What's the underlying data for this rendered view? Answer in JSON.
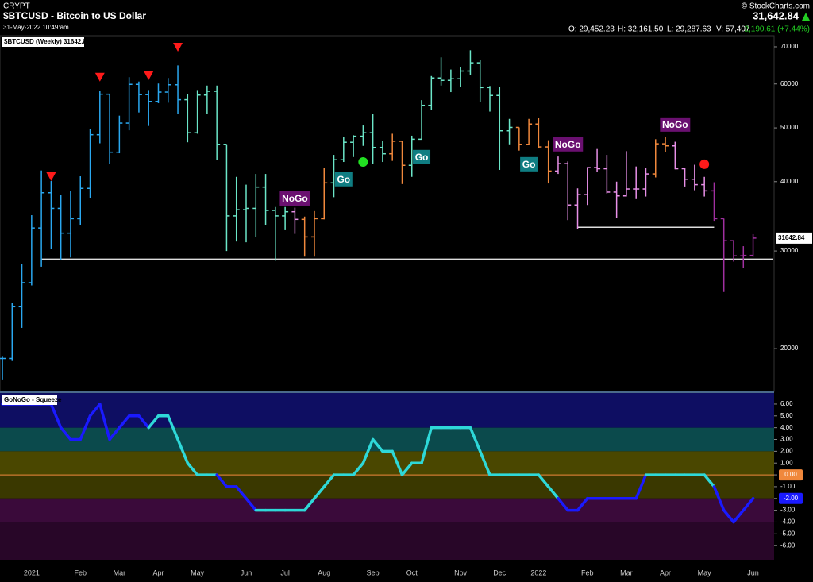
{
  "header": {
    "exchange": "CRYPT",
    "title": "$BTCUSD - Bitcoin to US Dollar",
    "timestamp": "31-May-2022 10:49:am",
    "copyright": "© StockCharts.com",
    "last": "31,642.84",
    "open": "O: 29,452.23",
    "high": "H: 32,161.50",
    "low": "L: 29,287.63",
    "volume": "V: 57,407",
    "change": "2,190.61 (+7.44%)"
  },
  "chart_data": [
    {
      "type": "ohlc",
      "title": "$BTCUSD (Weekly) 31642.84",
      "log_scale": true,
      "categories": [
        null,
        null,
        null,
        "2021",
        null,
        null,
        null,
        null,
        "Feb",
        null,
        null,
        null,
        "Mar",
        null,
        null,
        null,
        "Apr",
        null,
        null,
        null,
        "May",
        null,
        null,
        null,
        null,
        "Jun",
        null,
        null,
        null,
        "Jul",
        null,
        null,
        null,
        "Aug",
        null,
        null,
        null,
        null,
        "Sep",
        null,
        null,
        null,
        "Oct",
        null,
        null,
        null,
        null,
        "Nov",
        null,
        null,
        null,
        "Dec",
        null,
        null,
        null,
        "2022",
        null,
        null,
        null,
        null,
        "Feb",
        null,
        null,
        null,
        "Mar",
        null,
        null,
        null,
        "Apr",
        null,
        null,
        null,
        "May",
        null,
        null,
        null,
        null,
        "Jun"
      ],
      "open": [
        19200,
        19200,
        23800,
        26300,
        33000,
        38200,
        35800,
        32300,
        34300,
        38900,
        48600,
        57500,
        45200,
        51000,
        59900,
        57400,
        55800,
        58000,
        59800,
        56200,
        49000,
        57300,
        58200,
        46700,
        34700,
        35600,
        35800,
        39100,
        35500,
        34700,
        35300,
        34200,
        31800,
        34300,
        39800,
        43800,
        47100,
        48300,
        49000,
        46100,
        44900,
        47300,
        42800,
        47700,
        54900,
        61500,
        60900,
        61300,
        63300,
        65500,
        59100,
        57200,
        49400,
        50100,
        46700,
        50800,
        46200,
        41800,
        43100,
        36300,
        37900,
        42400,
        42200,
        38300,
        37700,
        38800,
        38800,
        41300,
        46800,
        46400,
        42200,
        40400,
        39500,
        38500,
        34300,
        31300,
        29400,
        29452.23
      ],
      "high": [
        19400,
        24200,
        28400,
        34800,
        41900,
        40100,
        37800,
        38500,
        40900,
        49700,
        58300,
        57500,
        52600,
        61700,
        60600,
        58500,
        60100,
        61500,
        64800,
        57500,
        58500,
        59600,
        59600,
        46700,
        40800,
        39500,
        41300,
        41300,
        36000,
        36000,
        35900,
        34600,
        35400,
        42300,
        44700,
        48100,
        48500,
        50500,
        52900,
        47400,
        48800,
        47400,
        48400,
        56100,
        62000,
        67000,
        63700,
        64300,
        69000,
        66300,
        59500,
        59200,
        51900,
        50100,
        51900,
        52100,
        47500,
        44400,
        43500,
        38900,
        42500,
        45800,
        44700,
        40000,
        45400,
        42600,
        42400,
        47700,
        48200,
        47200,
        42400,
        42900,
        40800,
        39900,
        34300,
        31300,
        30600,
        32161.5
      ],
      "low": [
        17600,
        19000,
        21800,
        26000,
        28100,
        30300,
        28900,
        29200,
        33400,
        37400,
        46900,
        43000,
        45000,
        49500,
        53300,
        50400,
        55400,
        55500,
        53000,
        47100,
        48800,
        53000,
        43800,
        30000,
        31200,
        31100,
        31800,
        33400,
        28800,
        32700,
        32200,
        29300,
        29300,
        34200,
        37500,
        43400,
        44300,
        46400,
        43100,
        43400,
        43600,
        39600,
        40800,
        47600,
        53900,
        59600,
        58000,
        59300,
        62300,
        55600,
        53500,
        42000,
        46700,
        45500,
        46600,
        45900,
        39700,
        41300,
        34100,
        32900,
        36300,
        41700,
        38100,
        34400,
        37600,
        37200,
        37600,
        40700,
        45200,
        42100,
        39200,
        38600,
        37600,
        34000,
        25300,
        28700,
        28000,
        29287.63
      ],
      "close": [
        19200,
        23800,
        26300,
        33000,
        38200,
        35800,
        32300,
        34300,
        38900,
        48600,
        57500,
        45200,
        51000,
        59900,
        57400,
        55800,
        58000,
        59800,
        56200,
        49000,
        57300,
        58200,
        46700,
        34700,
        35600,
        35800,
        39100,
        35500,
        34700,
        35300,
        34200,
        31800,
        34300,
        39800,
        43800,
        47100,
        48300,
        49000,
        46100,
        44900,
        47300,
        42800,
        47700,
        54900,
        61500,
        60900,
        61300,
        63300,
        65500,
        59100,
        57200,
        49400,
        50100,
        46700,
        50800,
        46200,
        41800,
        43100,
        36300,
        37900,
        42400,
        42200,
        38300,
        37700,
        38800,
        38800,
        41300,
        46800,
        46400,
        42200,
        40400,
        39500,
        38500,
        34300,
        31300,
        29400,
        29452.23,
        31642.84
      ],
      "colors": [
        "#2aa8f0",
        "#2aa8f0",
        "#2aa8f0",
        "#2aa8f0",
        "#2aa8f0",
        "#2aa8f0",
        "#2aa8f0",
        "#2aa8f0",
        "#2aa8f0",
        "#2aa8f0",
        "#2aa8f0",
        "#2aa8f0",
        "#2aa8f0",
        "#2aa8f0",
        "#2aa8f0",
        "#2aa8f0",
        "#2aa8f0",
        "#2aa8f0",
        "#2aa8f0",
        "#6be6c8",
        "#6be6c8",
        "#6be6c8",
        "#6be6c8",
        "#6be6c8",
        "#6be6c8",
        "#6be6c8",
        "#6be6c8",
        "#6be6c8",
        "#6be6c8",
        "#6be6c8",
        "#e890e8",
        "#f0883c",
        "#f0883c",
        "#f0883c",
        "#6be6c8",
        "#6be6c8",
        "#6be6c8",
        "#6be6c8",
        "#6be6c8",
        "#6be6c8",
        "#f0883c",
        "#f0883c",
        "#6be6c8",
        "#6be6c8",
        "#6be6c8",
        "#6be6c8",
        "#6be6c8",
        "#6be6c8",
        "#6be6c8",
        "#6be6c8",
        "#6be6c8",
        "#6be6c8",
        "#6be6c8",
        "#f0883c",
        "#f0883c",
        "#f0883c",
        "#f0883c",
        "#e890e8",
        "#e890e8",
        "#e890e8",
        "#e890e8",
        "#e890e8",
        "#e890e8",
        "#e890e8",
        "#e890e8",
        "#e890e8",
        "#e890e8",
        "#f0883c",
        "#f0883c",
        "#e890e8",
        "#e890e8",
        "#e890e8",
        "#e890e8",
        "#a030a0",
        "#a030a0",
        "#a030a0",
        "#a030a0",
        "#a030a0"
      ],
      "ylim": [
        16800,
        73300
      ],
      "yticks": [
        20000,
        30000,
        40000,
        50000,
        60000,
        70000
      ],
      "last_label": 31642.84,
      "last_color": "#ffffff",
      "annotations": [
        {
          "text": "NoGo",
          "bar": 30,
          "value": 37300,
          "color": "#6a1070"
        },
        {
          "text": "Go",
          "bar": 35,
          "value": 40400,
          "color": "#0f7d82"
        },
        {
          "text": "Go",
          "bar": 43,
          "value": 44300,
          "color": "#0f7d82"
        },
        {
          "text": "Go",
          "bar": 54,
          "value": 43000,
          "color": "#0f7d82"
        },
        {
          "text": "NoGo",
          "bar": 58,
          "value": 46700,
          "color": "#6a1070"
        },
        {
          "text": "NoGo",
          "bar": 69,
          "value": 50700,
          "color": "#6a1070"
        }
      ],
      "markers": [
        {
          "shape": "triangle",
          "bar": 5,
          "value": 40900,
          "color": "#ff1a1a"
        },
        {
          "shape": "triangle",
          "bar": 10,
          "value": 61800,
          "color": "#ff1a1a"
        },
        {
          "shape": "triangle",
          "bar": 15,
          "value": 62200,
          "color": "#ff1a1a"
        },
        {
          "shape": "triangle",
          "bar": 18,
          "value": 70000,
          "color": "#ff1a1a"
        },
        {
          "shape": "circle",
          "bar": 37,
          "value": 43400,
          "color": "#22e022"
        },
        {
          "shape": "circle",
          "bar": 72,
          "value": 43000,
          "color": "#ff1a1a"
        }
      ],
      "lines": [
        {
          "value": 29000,
          "from": 4,
          "to": 79
        },
        {
          "value": 33100,
          "from": 59,
          "to": 73
        }
      ]
    },
    {
      "type": "oscillator",
      "title": "GoNoGo - Squeeze",
      "values": [
        6,
        6,
        6,
        6,
        6,
        6,
        4,
        3,
        3,
        5,
        6,
        3,
        4,
        5,
        5,
        4,
        5,
        5,
        3,
        1,
        0,
        0,
        0,
        -1,
        -1,
        -2,
        -3,
        -3,
        -3,
        -3,
        -3,
        -3,
        -2,
        -1,
        0,
        0,
        0,
        1,
        3,
        2,
        2,
        0,
        1,
        1,
        4,
        4,
        4,
        4,
        4,
        2,
        0,
        0,
        0,
        0,
        0,
        0,
        -1,
        -2,
        -3,
        -3,
        -2,
        -2,
        -2,
        -2,
        -2,
        -2,
        0,
        0,
        0,
        0,
        0,
        0,
        0,
        -1,
        -3,
        -4,
        -3,
        -2
      ],
      "line_colors": [
        "#1a1aff",
        "#1a1aff",
        "#1a1aff",
        "#1a1aff",
        "#1a1aff",
        "#1a1aff",
        "#1a1aff",
        "#1a1aff",
        "#1a1aff",
        "#1a1aff",
        "#1a1aff",
        "#1a1aff",
        "#1a1aff",
        "#1a1aff",
        "#1a1aff",
        "#1a1aff",
        "#2ed8d8",
        "#2ed8d8",
        "#2ed8d8",
        "#2ed8d8",
        "#2ed8d8",
        "#2ed8d8",
        "#2ed8d8",
        "#1a1aff",
        "#1a1aff",
        "#1a1aff",
        "#1a1aff",
        "#2ed8d8",
        "#2ed8d8",
        "#2ed8d8",
        "#2ed8d8",
        "#2ed8d8",
        "#2ed8d8",
        "#2ed8d8",
        "#2ed8d8",
        "#2ed8d8",
        "#2ed8d8",
        "#2ed8d8",
        "#2ed8d8",
        "#2ed8d8",
        "#2ed8d8",
        "#2ed8d8",
        "#2ed8d8",
        "#2ed8d8",
        "#2ed8d8",
        "#2ed8d8",
        "#2ed8d8",
        "#2ed8d8",
        "#2ed8d8",
        "#2ed8d8",
        "#2ed8d8",
        "#2ed8d8",
        "#2ed8d8",
        "#2ed8d8",
        "#2ed8d8",
        "#2ed8d8",
        "#2ed8d8",
        "#2ed8d8",
        "#1a1aff",
        "#1a1aff",
        "#1a1aff",
        "#1a1aff",
        "#1a1aff",
        "#1a1aff",
        "#1a1aff",
        "#1a1aff",
        "#1a1aff",
        "#2ed8d8",
        "#2ed8d8",
        "#2ed8d8",
        "#2ed8d8",
        "#2ed8d8",
        "#2ed8d8",
        "#2ed8d8",
        "#1a1aff",
        "#1a1aff",
        "#1a1aff",
        "#1a1aff"
      ],
      "ylim": [
        -7.2,
        6.94
      ],
      "yticks": [
        {
          "value": 6,
          "label": "6.00"
        },
        {
          "value": 5,
          "label": "5.00"
        },
        {
          "value": 4,
          "label": "4.00"
        },
        {
          "value": 3,
          "label": "3.00"
        },
        {
          "value": 2,
          "label": "2.00"
        },
        {
          "value": 1,
          "label": "1.00"
        },
        {
          "value": 0,
          "label": "0.00"
        },
        {
          "value": -1,
          "label": "-1.00"
        },
        {
          "value": -2,
          "label": "-2.00"
        },
        {
          "value": -3,
          "label": "-3.00"
        },
        {
          "value": -4,
          "label": "-4.00"
        },
        {
          "value": -5,
          "label": "-5.00"
        },
        {
          "value": -6,
          "label": "-6.00"
        }
      ],
      "bands": [
        {
          "from": 4,
          "to": 6.94,
          "color": "#0e0e62"
        },
        {
          "from": 2,
          "to": 4,
          "color": "#0b4a4c"
        },
        {
          "from": 0,
          "to": 2,
          "color": "#4a4700"
        },
        {
          "from": -2,
          "to": 0,
          "color": "#3a3800"
        },
        {
          "from": -4,
          "to": -2,
          "color": "#3a0a3a"
        },
        {
          "from": -7.2,
          "to": -4,
          "color": "#280628"
        }
      ],
      "zero_line": {
        "value": 0,
        "label": "0.00",
        "color": "#f0883c"
      },
      "last_label": {
        "value": -2,
        "label": "-2.00",
        "color": "#1a1aff"
      }
    }
  ]
}
